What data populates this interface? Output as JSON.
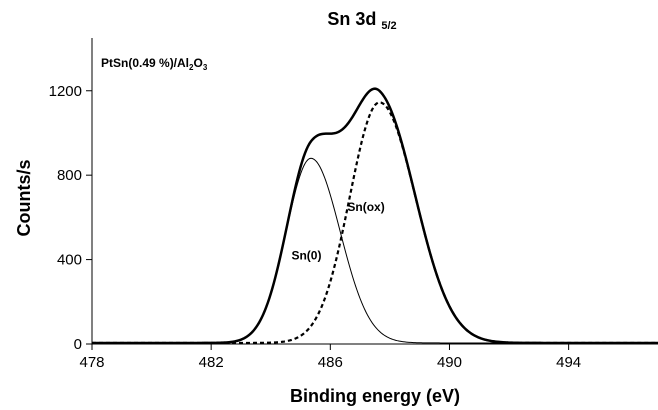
{
  "chart_data": {
    "type": "line",
    "title": "Sn 3d",
    "title_subscript": "5/2",
    "sample_label": {
      "prefix": "PtSn(0.49 %)/Al",
      "sub1": "2",
      "mid": "O",
      "sub2": "3"
    },
    "xlabel": "Binding energy (eV)",
    "ylabel": "Counts/s",
    "xlim": [
      478,
      497
    ],
    "ylim": [
      0,
      1450
    ],
    "xticks": [
      478,
      482,
      486,
      490,
      494
    ],
    "yticks": [
      0,
      400,
      800,
      1200
    ],
    "grid": false,
    "legend": "none",
    "baseline": 5,
    "components": [
      {
        "name": "Sn(0)",
        "center": 485.35,
        "height": 875,
        "fwhm_low": 1.95,
        "fwhm_high": 2.3
      },
      {
        "name": "Sn(ox)",
        "center": 487.65,
        "height": 1140,
        "fwhm_low": 2.35,
        "fwhm_high": 2.85
      }
    ],
    "series": [
      {
        "name": "Sn(0)",
        "style": "thin"
      },
      {
        "name": "Sn(ox)",
        "style": "dashed"
      },
      {
        "style": "bold"
      }
    ],
    "annotations": [
      {
        "text": "Sn(0)",
        "x": 485.2,
        "y": 400
      },
      {
        "text": "Sn(ox)",
        "x": 487.2,
        "y": 630
      }
    ]
  }
}
